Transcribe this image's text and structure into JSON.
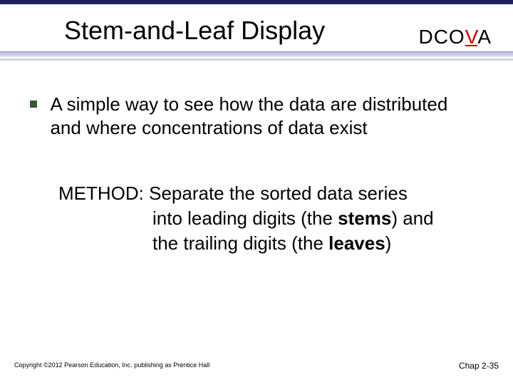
{
  "colors": {
    "top_accent": "#1a1a5c",
    "underline_main": "#c0c0e4",
    "underline_thin": "#d4d4ec",
    "bullet_square": "#2e5c2e",
    "dcova_highlight": "#cc0000",
    "text": "#000000",
    "background": "#ffffff"
  },
  "title": "Stem-and-Leaf Display",
  "dcova": {
    "d": "D",
    "c": "C",
    "o": "O",
    "v": "V",
    "a": "A"
  },
  "bullet": "A simple way to see how the data are distributed and where concentrations of data exist",
  "method": {
    "line1_prefix": "METHOD: ",
    "line1_rest": "Separate the sorted data series",
    "line2_a": "into leading digits (the ",
    "line2_stem": "stems",
    "line2_b": ") and",
    "line3_a": "the trailing digits (the ",
    "line3_leaf": "leaves",
    "line3_b": ")"
  },
  "footer": {
    "copyright": "Copyright ©2012 Pearson Education, Inc. publishing as Prentice Hall",
    "chap": "Chap 2-35"
  },
  "typography": {
    "title_fontsize": 36,
    "dcova_fontsize": 28,
    "body_fontsize": 26,
    "copyright_fontsize": 9,
    "chap_fontsize": 12
  }
}
